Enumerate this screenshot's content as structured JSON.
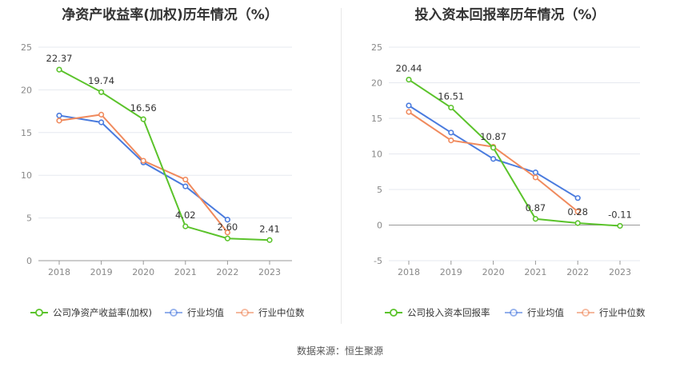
{
  "source": "数据来源：恒生聚源",
  "colors": {
    "company": "#5bc32b",
    "avg": "#4a7bde",
    "median": "#f08a5d",
    "grid": "#e6e9ef",
    "axis": "#999999"
  },
  "chart_data": [
    {
      "type": "line",
      "title": "净资产收益率(加权)历年情况（%）",
      "categories": [
        "2018",
        "2019",
        "2020",
        "2021",
        "2022",
        "2023"
      ],
      "ylim": [
        0,
        25
      ],
      "yticks": [
        0,
        5,
        10,
        15,
        20,
        25
      ],
      "grid": true,
      "legend_position": "bottom",
      "series": [
        {
          "name": "公司净资产收益率(加权)",
          "color_key": "company",
          "values": [
            22.37,
            19.74,
            16.56,
            4.02,
            2.6,
            2.41
          ],
          "labels": [
            "22.37",
            "19.74",
            "16.56",
            "4.02",
            "2.60",
            "2.41"
          ]
        },
        {
          "name": "行业均值",
          "color_key": "avg",
          "values": [
            17.0,
            16.2,
            11.5,
            8.7,
            4.8,
            null
          ]
        },
        {
          "name": "行业中位数",
          "color_key": "median",
          "values": [
            16.4,
            17.1,
            11.7,
            9.5,
            3.3,
            null
          ]
        }
      ]
    },
    {
      "type": "line",
      "title": "投入资本回报率历年情况（%）",
      "categories": [
        "2018",
        "2019",
        "2020",
        "2021",
        "2022",
        "2023"
      ],
      "ylim": [
        -5,
        25
      ],
      "yticks": [
        -5,
        0,
        5,
        10,
        15,
        20,
        25
      ],
      "grid": true,
      "legend_position": "bottom",
      "series": [
        {
          "name": "公司投入资本回报率",
          "color_key": "company",
          "values": [
            20.44,
            16.51,
            10.87,
            0.87,
            0.28,
            -0.11
          ],
          "labels": [
            "20.44",
            "16.51",
            "10.87",
            "0.87",
            "0.28",
            "-0.11"
          ]
        },
        {
          "name": "行业均值",
          "color_key": "avg",
          "values": [
            16.8,
            13.0,
            9.3,
            7.4,
            3.8,
            null
          ]
        },
        {
          "name": "行业中位数",
          "color_key": "median",
          "values": [
            15.9,
            11.9,
            11.0,
            6.7,
            1.9,
            null
          ]
        }
      ]
    }
  ]
}
